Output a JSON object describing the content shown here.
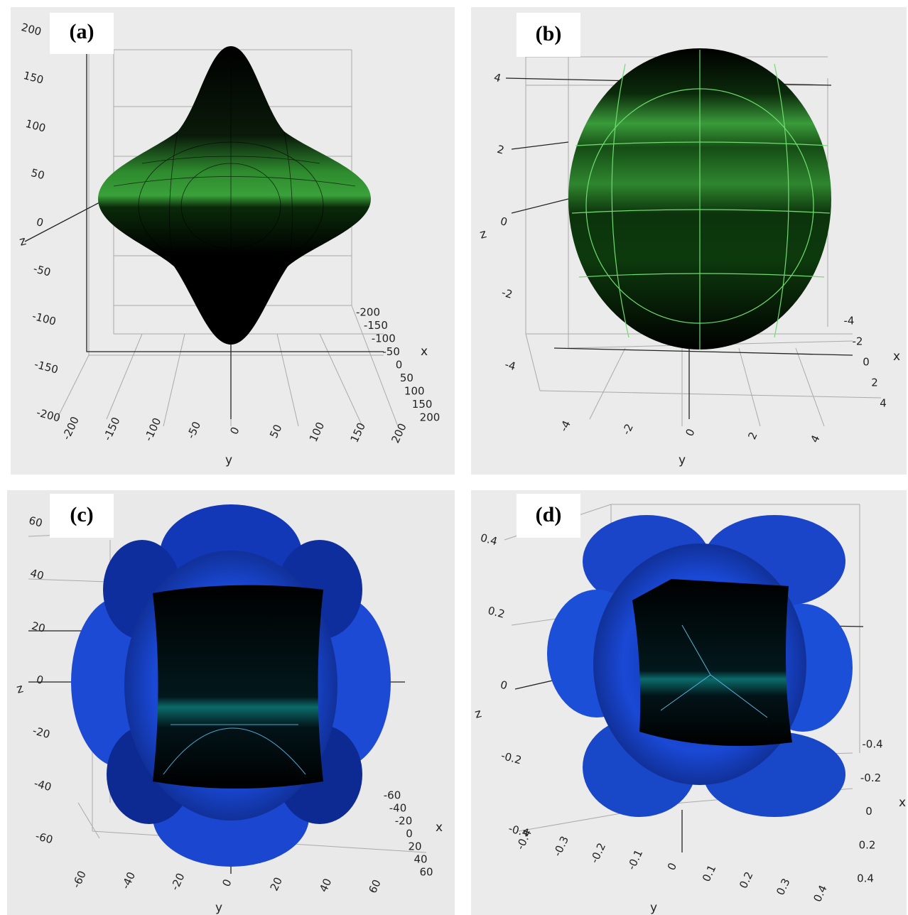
{
  "panels": [
    {
      "label": "(a)",
      "axes": {
        "z": {
          "title": "z",
          "ticks": [
            200,
            150,
            100,
            50,
            0,
            -50,
            -100,
            -150,
            -200
          ]
        },
        "x": {
          "title": "x",
          "ticks": [
            -200,
            -150,
            -100,
            -50,
            0,
            50,
            100,
            150,
            200
          ]
        },
        "y": {
          "title": "y",
          "ticks": [
            -200,
            -150,
            -100,
            -50,
            0,
            50,
            100,
            150,
            200
          ]
        }
      }
    },
    {
      "label": "(b)",
      "axes": {
        "z": {
          "title": "z",
          "ticks": [
            4,
            2,
            0,
            -2,
            -4
          ]
        },
        "x": {
          "title": "x",
          "ticks": [
            -4,
            -2,
            0,
            2,
            4
          ]
        },
        "y": {
          "title": "y",
          "ticks": [
            -4,
            -2,
            0,
            2,
            4
          ]
        }
      }
    },
    {
      "label": "(c)",
      "axes": {
        "z": {
          "title": "z",
          "ticks": [
            60,
            40,
            20,
            0,
            -20,
            -40,
            -60
          ]
        },
        "x": {
          "title": "x",
          "ticks": [
            -60,
            -40,
            -20,
            0,
            20,
            40,
            60
          ]
        },
        "y": {
          "title": "y",
          "ticks": [
            -60,
            -40,
            -20,
            0,
            20,
            40,
            60
          ]
        }
      }
    },
    {
      "label": "(d)",
      "axes": {
        "z": {
          "title": "z",
          "ticks": [
            0.4,
            0.2,
            0,
            -0.2,
            -0.4
          ]
        },
        "x": {
          "title": "x",
          "ticks": [
            -0.4,
            -0.2,
            0,
            0.2,
            0.4
          ]
        },
        "y": {
          "title": "y",
          "ticks": [
            -0.4,
            -0.3,
            -0.2,
            -0.1,
            0,
            0.1,
            0.2,
            0.3,
            0.4
          ]
        }
      }
    }
  ]
}
